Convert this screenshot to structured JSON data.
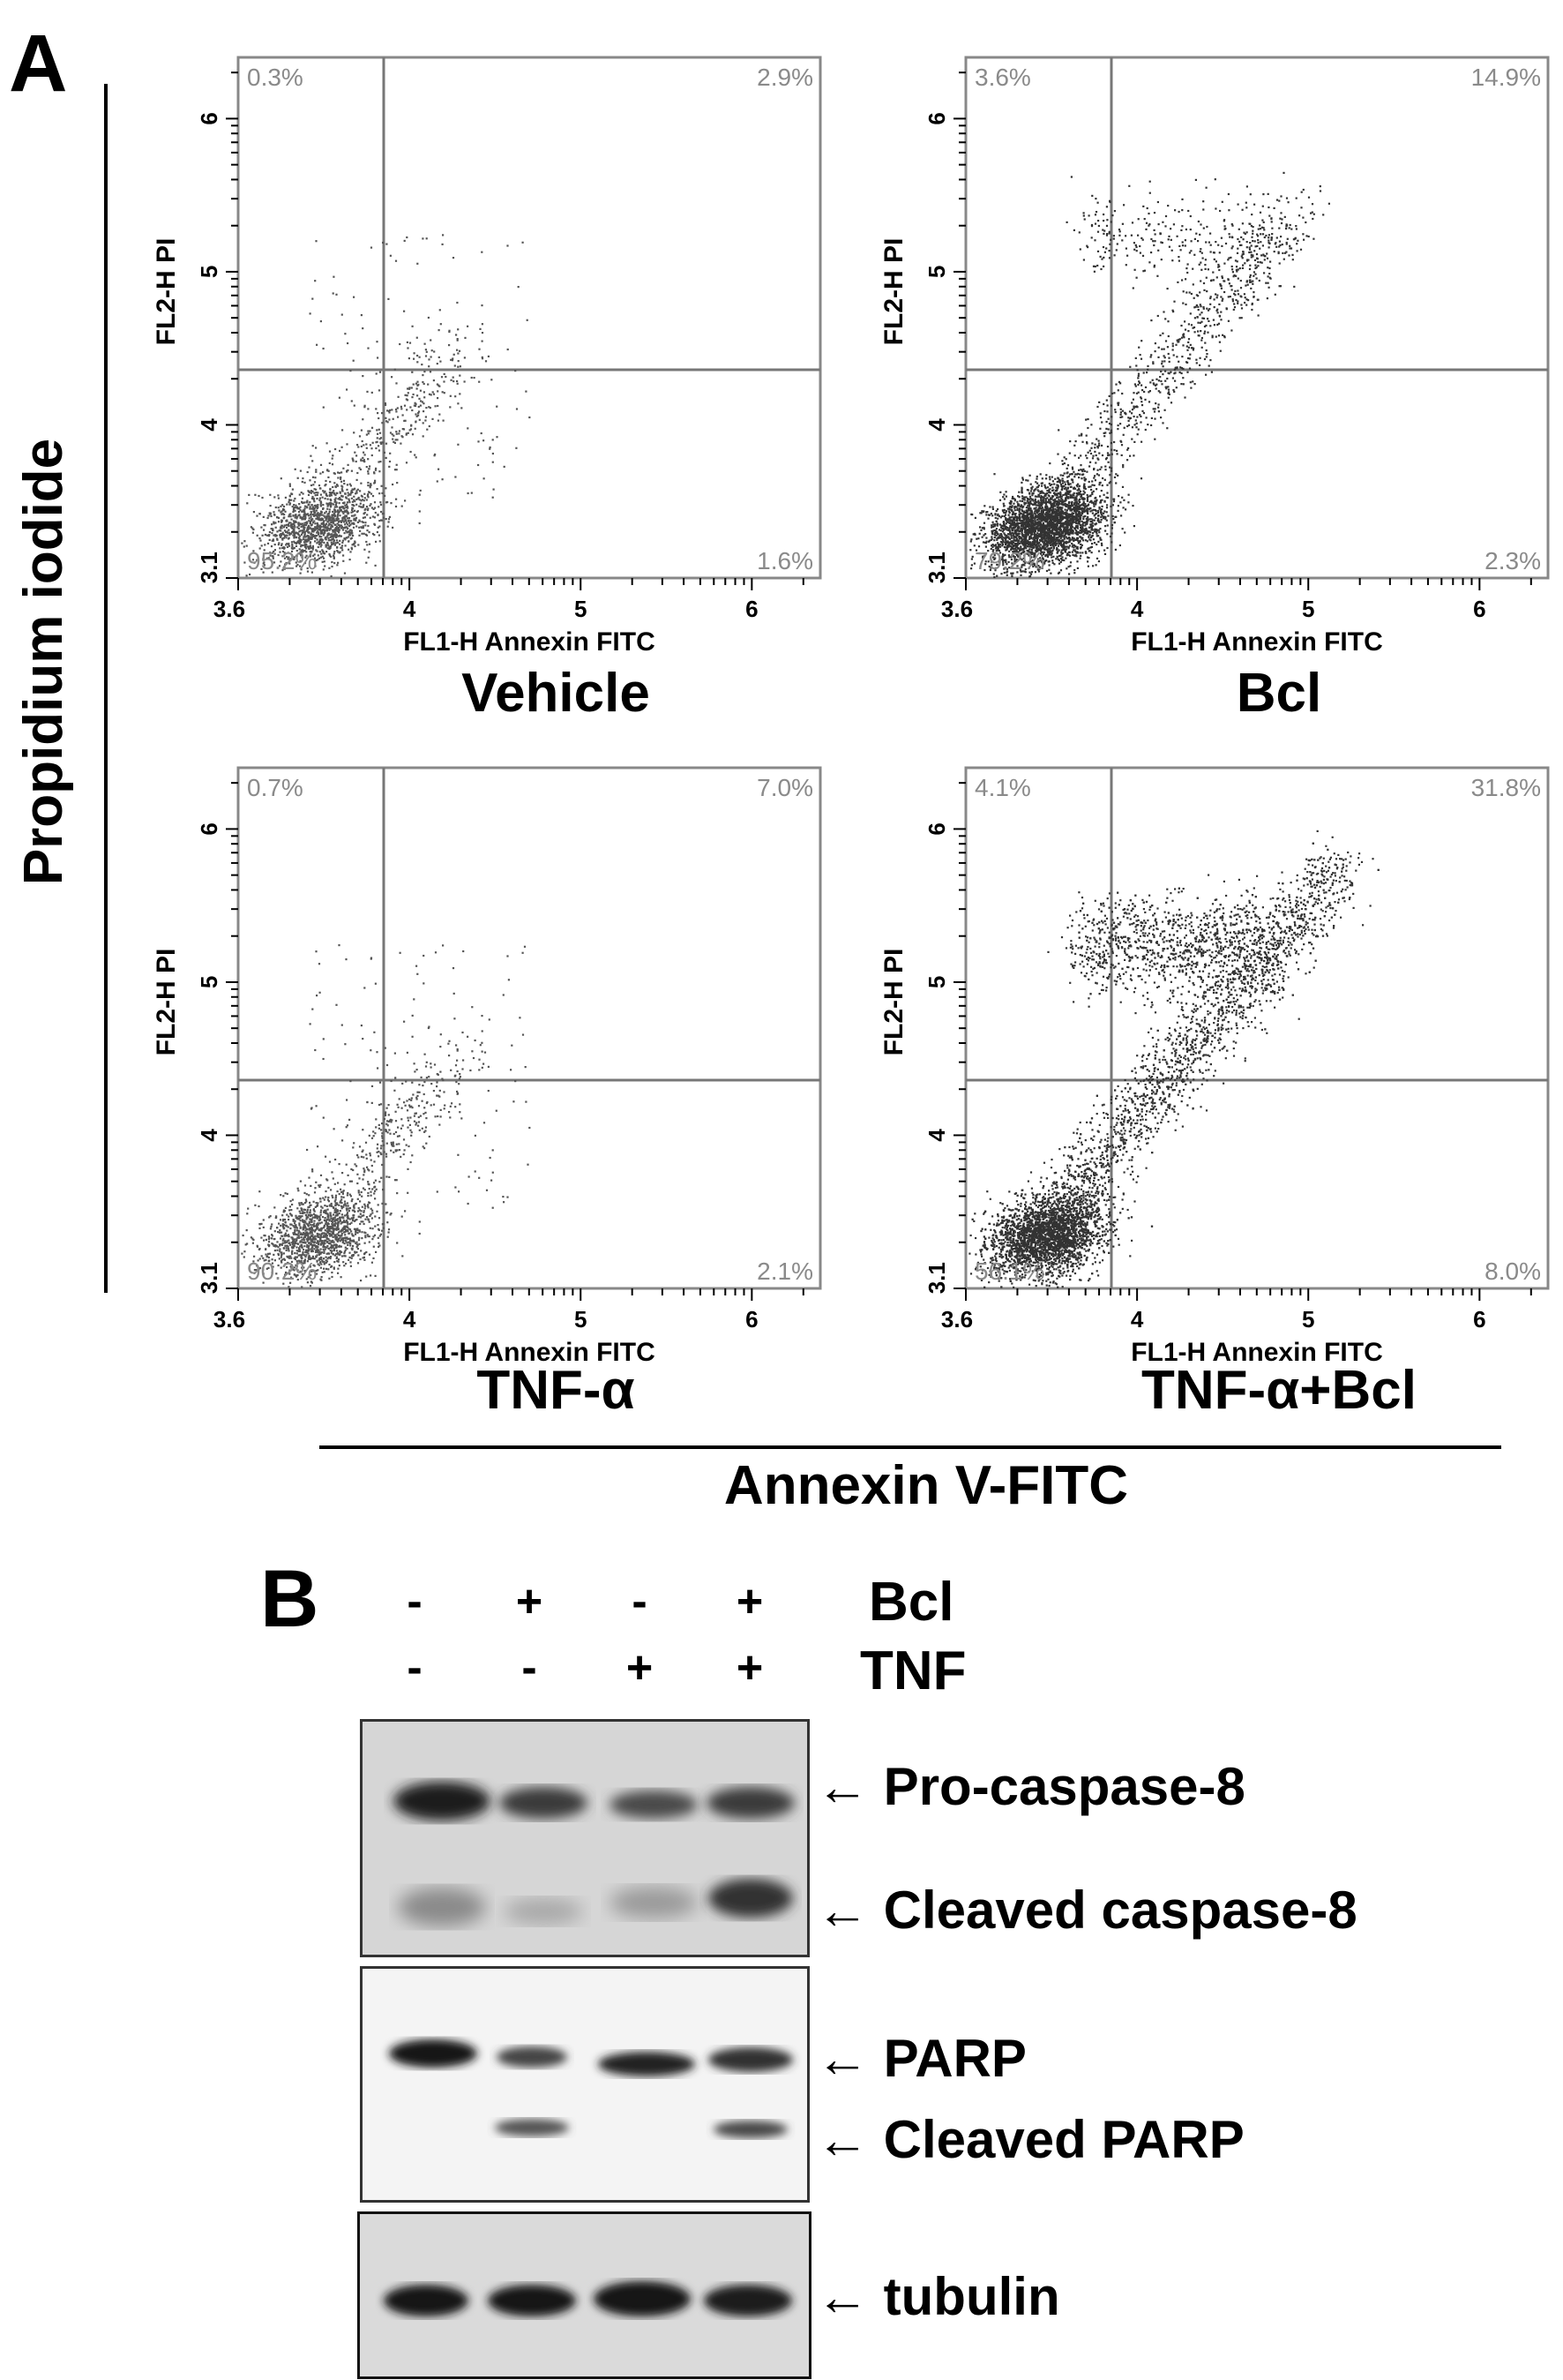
{
  "panel_a": {
    "letter": "A",
    "y_axis_label": "Propidium iodide",
    "x_axis_label": "Annexin V-FITC",
    "plots": [
      {
        "id": "vehicle",
        "condition": "Vehicle",
        "quadrants": {
          "ul": "0.3%",
          "ur": "2.9%",
          "ll": "95.2%",
          "lr": "1.6%"
        },
        "density": "low"
      },
      {
        "id": "bcl",
        "condition": "Bcl",
        "quadrants": {
          "ul": "3.6%",
          "ur": "14.9%",
          "ll": "79.2%",
          "lr": "2.3%"
        },
        "density": "medium"
      },
      {
        "id": "tnf",
        "condition": "TNF-α",
        "quadrants": {
          "ul": "0.7%",
          "ur": "7.0%",
          "ll": "90.2%",
          "lr": "2.1%"
        },
        "density": "low"
      },
      {
        "id": "tnfbcl",
        "condition": "TNF-α+Bcl",
        "quadrants": {
          "ul": "4.1%",
          "ur": "31.8%",
          "ll": "56.1%",
          "lr": "8.0%"
        },
        "density": "high"
      }
    ],
    "axis_title_x": "FL1-H Annexin FITC",
    "axis_title_y": "FL2-H PI",
    "ticks": {
      "x_start": "3.6",
      "x": [
        "4",
        "5",
        "6"
      ],
      "y_start": "3.1",
      "y": [
        "4",
        "5",
        "6"
      ]
    }
  },
  "panel_b": {
    "letter": "B",
    "treatments": [
      {
        "name": "Bcl",
        "signs": [
          "-",
          "+",
          "-",
          "+"
        ]
      },
      {
        "name": "TNF",
        "signs": [
          "-",
          "-",
          "+",
          "+"
        ]
      }
    ],
    "bands": [
      {
        "label": "Pro-caspase-8"
      },
      {
        "label": "Cleaved caspase-8"
      },
      {
        "label": "PARP"
      },
      {
        "label": "Cleaved PARP"
      },
      {
        "label": "tubulin"
      }
    ],
    "arrow_glyph": "←"
  }
}
